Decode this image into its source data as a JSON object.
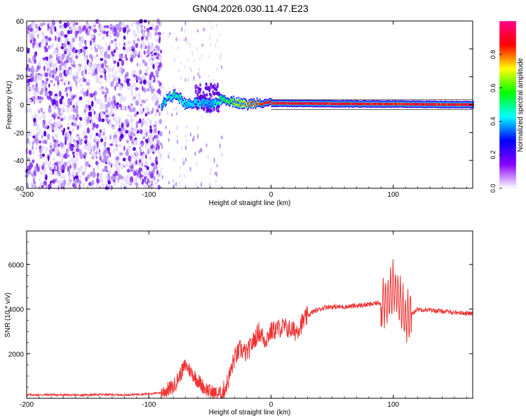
{
  "figure": {
    "title": "GN04.2026.030.11.47.E23"
  },
  "colors": {
    "spectrogram_low": "#e8dcff",
    "spectrogram_mid": "#8a3cf0",
    "spectrogram_high": "#5a00d8",
    "snr_line": "#ee3333",
    "frame": "#000000"
  },
  "chart_data": [
    {
      "type": "heatmap",
      "title": "GN04.2026.030.11.47.E23",
      "xlabel": "Height of straight line (km)",
      "ylabel": "Frequency (Hz)",
      "xlim": [
        -200,
        165
      ],
      "ylim": [
        -60,
        60
      ],
      "x_ticks": [
        -200,
        -100,
        0,
        100
      ],
      "y_ticks": [
        -60,
        -40,
        -20,
        0,
        20,
        40,
        60
      ],
      "colorbar": {
        "label": "Normalized spectral amplitude",
        "range": [
          0,
          1
        ],
        "ticks": [
          "0.0",
          "0.2",
          "0.4",
          "0.6",
          "0.8"
        ],
        "colormap": [
          "#ffffff",
          "#8800ff",
          "#0000ff",
          "#00ffff",
          "#00ff00",
          "#ffff00",
          "#ff0000",
          "#ff0088"
        ]
      },
      "features": {
        "noise_region_x": [
          -200,
          -90
        ],
        "noise_amplitude": 0.15,
        "sparse_region_x": [
          -90,
          -40
        ],
        "signal_band": [
          {
            "x": -90,
            "freq": 0,
            "amp": 0.4
          },
          {
            "x": -85,
            "freq": 5,
            "amp": 0.5
          },
          {
            "x": -78,
            "freq": 7,
            "amp": 0.55
          },
          {
            "x": -70,
            "freq": 0,
            "amp": 0.45
          },
          {
            "x": -60,
            "freq": 1,
            "amp": 0.45
          },
          {
            "x": -50,
            "freq": 0,
            "amp": 0.4
          },
          {
            "x": -40,
            "freq": 4,
            "amp": 0.6
          },
          {
            "x": -30,
            "freq": 2,
            "amp": 0.7
          },
          {
            "x": -20,
            "freq": 0,
            "amp": 0.8
          },
          {
            "x": -10,
            "freq": 2,
            "amp": 0.85
          },
          {
            "x": 0,
            "freq": 1,
            "amp": 0.95
          },
          {
            "x": 165,
            "freq": 0,
            "amp": 0.95
          }
        ]
      }
    },
    {
      "type": "line",
      "xlabel": "Height of straight line (km)",
      "ylabel": "SNR (10 * v/v)",
      "xlim": [
        -200,
        165
      ],
      "ylim": [
        0,
        7500
      ],
      "x_ticks": [
        -200,
        -100,
        0,
        100
      ],
      "y_ticks": [
        2000,
        4000,
        6000
      ],
      "series": [
        {
          "x": [
            -200,
            -180,
            -160,
            -140,
            -120,
            -100,
            -90,
            -80,
            -70,
            -60,
            -55,
            -50,
            -45,
            -40,
            -35,
            -30,
            -25,
            -20,
            -15,
            -10,
            -5,
            0,
            10,
            20,
            30,
            35,
            40,
            45,
            50,
            60,
            70,
            80,
            90,
            95,
            100,
            105,
            110,
            115,
            120,
            130,
            140,
            150,
            165
          ],
          "values": [
            150,
            160,
            140,
            170,
            150,
            200,
            250,
            500,
            1500,
            800,
            500,
            300,
            200,
            200,
            800,
            1800,
            2200,
            2000,
            2500,
            3000,
            2600,
            3000,
            3200,
            3000,
            3700,
            3900,
            4000,
            4100,
            4100,
            4100,
            4150,
            4200,
            4300,
            4300,
            5000,
            4500,
            3500,
            3800,
            4000,
            3950,
            3900,
            3850,
            3800
          ]
        }
      ]
    }
  ]
}
